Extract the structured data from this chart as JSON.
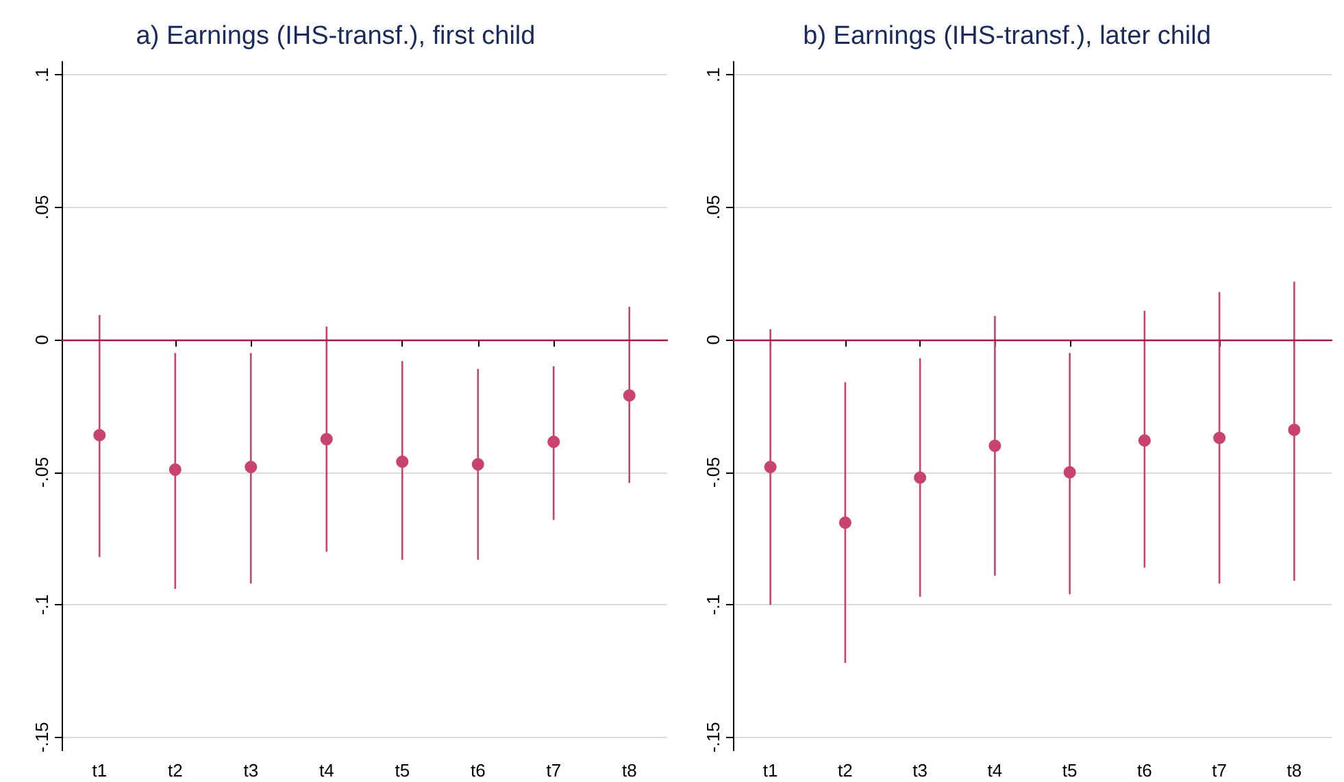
{
  "chart_data": [
    {
      "type": "scatter",
      "title": "a) Earnings (IHS-transf.), first child",
      "categories": [
        "t1",
        "t2",
        "t3",
        "t4",
        "t5",
        "t6",
        "t7",
        "t8"
      ],
      "color": "#c8436f",
      "marker": "circle",
      "grid": "y",
      "values": [
        -0.036,
        -0.049,
        -0.048,
        -0.0375,
        -0.046,
        -0.047,
        -0.0385,
        -0.021
      ],
      "errors": [
        [
          -0.082,
          0.0094
        ],
        [
          -0.094,
          -0.005
        ],
        [
          -0.092,
          -0.005
        ],
        [
          -0.08,
          0.005
        ],
        [
          -0.083,
          -0.008
        ],
        [
          -0.083,
          -0.011
        ],
        [
          -0.068,
          -0.01
        ],
        [
          -0.054,
          0.0125
        ]
      ],
      "ylim": [
        -0.155,
        0.105
      ],
      "yticks": [
        {
          "value": -0.15,
          "label": "-.15"
        },
        {
          "value": -0.1,
          "label": "-.1"
        },
        {
          "value": -0.05,
          "label": "-.05"
        },
        0,
        {
          "value": 0.05,
          "label": ".05"
        },
        {
          "value": 0.1,
          "label": ".1"
        }
      ],
      "ref_lines": [
        {
          "axis": "y",
          "value": 0,
          "color": "#a3174f"
        }
      ]
    },
    {
      "type": "scatter",
      "title": "b) Earnings (IHS-transf.), later child",
      "categories": [
        "t1",
        "t2",
        "t3",
        "t4",
        "t5",
        "t6",
        "t7",
        "t8"
      ],
      "color": "#c8436f",
      "marker": "circle",
      "grid": "y",
      "values": [
        -0.048,
        -0.069,
        -0.052,
        -0.04,
        -0.05,
        -0.038,
        -0.037,
        -0.034
      ],
      "errors": [
        [
          -0.1,
          0.004
        ],
        [
          -0.122,
          -0.016
        ],
        [
          -0.097,
          -0.007
        ],
        [
          -0.089,
          0.009
        ],
        [
          -0.096,
          -0.005
        ],
        [
          -0.086,
          0.011
        ],
        [
          -0.092,
          0.018
        ],
        [
          -0.091,
          0.022
        ]
      ],
      "ylim": [
        -0.155,
        0.105
      ],
      "yticks": [
        {
          "value": -0.15,
          "label": "-.15"
        },
        {
          "value": -0.1,
          "label": "-.1"
        },
        {
          "value": -0.05,
          "label": "-.05"
        },
        0,
        {
          "value": 0.05,
          "label": ".05"
        },
        {
          "value": 0.1,
          "label": ".1"
        }
      ],
      "ref_lines": [
        {
          "axis": "y",
          "value": 0,
          "color": "#a3174f"
        }
      ]
    }
  ]
}
